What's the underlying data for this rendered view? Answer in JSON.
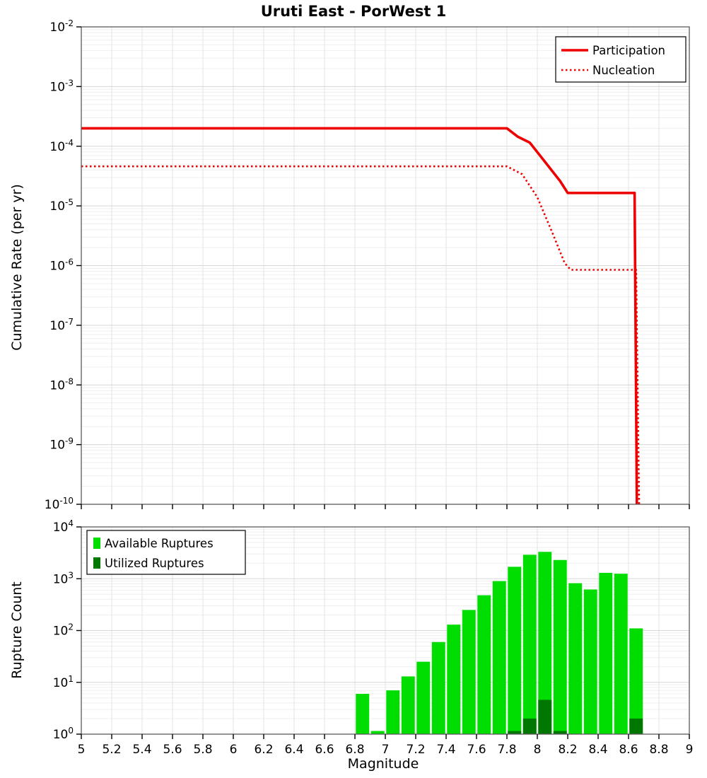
{
  "chart_data": [
    {
      "type": "line",
      "title": "Uruti East - PorWest 1",
      "ylabel": "Cumulative Rate (per yr)",
      "xlabel": "Magnitude",
      "xlim": [
        5,
        9
      ],
      "x_tick_step": 0.2,
      "y_scale": "log",
      "ylim": [
        1e-10,
        0.01
      ],
      "grid": true,
      "legend": {
        "position": "top-right"
      },
      "series": [
        {
          "name": "Participation",
          "color": "#ee0000",
          "style": "solid",
          "width": 3.6,
          "points": [
            [
              5.0,
              0.0002
            ],
            [
              7.8,
              0.0002
            ],
            [
              7.87,
              0.000145
            ],
            [
              7.95,
              0.000115
            ],
            [
              8.05,
              5.5e-05
            ],
            [
              8.15,
              2.6e-05
            ],
            [
              8.2,
              1.65e-05
            ],
            [
              8.64,
              1.65e-05
            ],
            [
              8.655,
              1e-10
            ]
          ]
        },
        {
          "name": "Nucleation",
          "color": "#ee0000",
          "style": "dotted",
          "width": 2.6,
          "points": [
            [
              5.0,
              4.6e-05
            ],
            [
              7.8,
              4.6e-05
            ],
            [
              7.9,
              3.4e-05
            ],
            [
              8.0,
              1.4e-05
            ],
            [
              8.1,
              3.5e-06
            ],
            [
              8.18,
              1.1e-06
            ],
            [
              8.22,
              8.5e-07
            ],
            [
              8.65,
              8.5e-07
            ],
            [
              8.67,
              1e-10
            ]
          ]
        }
      ]
    },
    {
      "type": "bar",
      "title": "",
      "ylabel": "Rupture Count",
      "xlabel": "Magnitude",
      "xlim": [
        5,
        9
      ],
      "x_tick_step": 0.2,
      "y_scale": "log",
      "ylim": [
        1,
        10000.0
      ],
      "grid": true,
      "bar_width": 0.088,
      "legend": {
        "position": "top-left"
      },
      "series": [
        {
          "name": "Available Ruptures",
          "color": "#00dd00",
          "bars": [
            [
              6.85,
              6
            ],
            [
              6.95,
              1.15
            ],
            [
              7.05,
              7
            ],
            [
              7.15,
              13
            ],
            [
              7.25,
              25
            ],
            [
              7.35,
              60
            ],
            [
              7.45,
              130
            ],
            [
              7.55,
              250
            ],
            [
              7.65,
              480
            ],
            [
              7.75,
              900
            ],
            [
              7.85,
              1700
            ],
            [
              7.95,
              2900
            ],
            [
              8.05,
              3300
            ],
            [
              8.15,
              2300
            ],
            [
              8.25,
              820
            ],
            [
              8.35,
              620
            ],
            [
              8.45,
              1300
            ],
            [
              8.55,
              1250
            ],
            [
              8.65,
              110
            ]
          ]
        },
        {
          "name": "Utilized Ruptures",
          "color": "#007700",
          "bars": [
            [
              7.85,
              1.15
            ],
            [
              7.95,
              2
            ],
            [
              8.05,
              4.6
            ],
            [
              8.15,
              1.15
            ],
            [
              8.65,
              2
            ]
          ]
        }
      ]
    }
  ]
}
